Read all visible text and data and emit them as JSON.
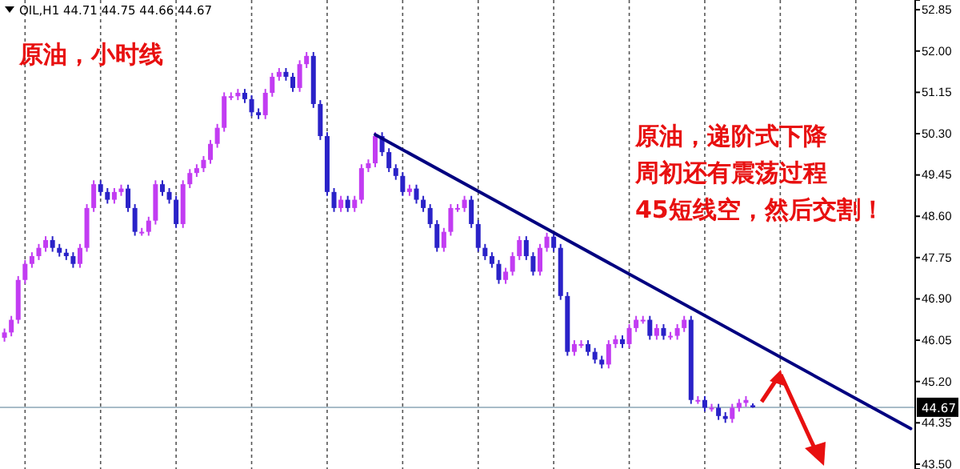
{
  "chart_data": {
    "type": "candlestick",
    "categories": [
      null,
      null,
      null,
      null,
      null,
      null,
      null,
      null,
      null,
      null,
      null,
      null,
      null,
      null,
      null,
      null,
      null,
      null,
      null,
      null,
      null,
      null,
      null,
      null,
      null,
      null,
      null,
      null,
      null,
      null,
      null,
      null,
      null,
      null,
      null,
      null,
      null,
      null,
      null,
      null,
      null,
      null,
      null,
      null,
      null,
      null,
      null,
      null,
      null,
      null,
      null,
      null,
      null,
      null,
      null,
      null,
      null,
      null,
      null,
      null,
      null,
      null,
      null,
      null,
      null,
      null,
      null,
      null,
      null,
      null,
      null,
      null,
      null,
      null,
      null,
      null,
      null,
      null,
      null,
      null,
      null,
      null,
      null,
      null,
      null,
      null,
      null,
      null,
      null,
      null,
      null,
      null,
      null,
      null,
      null,
      null,
      null,
      null,
      null,
      null,
      null,
      null,
      null,
      null,
      null,
      null,
      null,
      null,
      null,
      null,
      null,
      null,
      null,
      null,
      null,
      null,
      null,
      null,
      null,
      null,
      null,
      null,
      null,
      null,
      null,
      null,
      null,
      null,
      null,
      null,
      null,
      null,
      null
    ],
    "ohlc": [
      [
        46.1,
        46.29,
        46.02,
        46.21
      ],
      [
        46.21,
        46.55,
        46.13,
        46.47
      ],
      [
        46.47,
        47.37,
        46.39,
        47.29
      ],
      [
        47.29,
        47.7,
        47.21,
        47.62
      ],
      [
        47.62,
        47.86,
        47.54,
        47.78
      ],
      [
        47.78,
        48.03,
        47.7,
        47.95
      ],
      [
        47.95,
        48.19,
        47.87,
        48.11
      ],
      [
        48.11,
        48.19,
        47.87,
        47.95
      ],
      [
        47.95,
        48.03,
        47.77,
        47.85
      ],
      [
        47.85,
        47.93,
        47.7,
        47.78
      ],
      [
        47.78,
        47.86,
        47.54,
        47.62
      ],
      [
        47.62,
        48.03,
        47.54,
        47.95
      ],
      [
        47.95,
        48.85,
        47.87,
        48.77
      ],
      [
        48.77,
        49.34,
        48.69,
        49.26
      ],
      [
        49.26,
        49.34,
        49.02,
        49.1
      ],
      [
        49.1,
        49.18,
        48.86,
        48.94
      ],
      [
        48.94,
        49.18,
        48.86,
        49.1
      ],
      [
        49.1,
        49.25,
        49.02,
        49.17
      ],
      [
        49.17,
        49.25,
        48.69,
        48.77
      ],
      [
        48.77,
        48.85,
        48.2,
        48.28
      ],
      [
        48.28,
        48.36,
        48.2,
        48.28
      ],
      [
        48.28,
        48.59,
        48.2,
        48.51
      ],
      [
        48.51,
        49.34,
        48.43,
        49.26
      ],
      [
        49.26,
        49.34,
        49.02,
        49.1
      ],
      [
        49.1,
        49.18,
        48.86,
        48.94
      ],
      [
        48.94,
        49.02,
        48.36,
        48.44
      ],
      [
        48.44,
        49.34,
        48.36,
        49.26
      ],
      [
        49.26,
        49.57,
        49.18,
        49.49
      ],
      [
        49.49,
        49.67,
        49.41,
        49.59
      ],
      [
        49.59,
        49.84,
        49.51,
        49.76
      ],
      [
        49.76,
        50.17,
        49.68,
        50.09
      ],
      [
        50.09,
        50.5,
        50.01,
        50.42
      ],
      [
        50.42,
        51.15,
        50.34,
        51.07
      ],
      [
        51.07,
        51.15,
        50.99,
        51.07
      ],
      [
        51.07,
        51.22,
        50.99,
        51.14
      ],
      [
        51.14,
        51.22,
        50.93,
        51.01
      ],
      [
        51.01,
        51.09,
        50.66,
        50.74
      ],
      [
        50.74,
        50.82,
        50.6,
        50.68
      ],
      [
        50.68,
        51.22,
        50.6,
        51.14
      ],
      [
        51.14,
        51.55,
        51.06,
        51.47
      ],
      [
        51.47,
        51.65,
        51.39,
        51.57
      ],
      [
        51.57,
        51.65,
        51.39,
        51.47
      ],
      [
        51.47,
        51.55,
        51.16,
        51.24
      ],
      [
        51.24,
        51.81,
        51.16,
        51.73
      ],
      [
        51.73,
        51.98,
        51.65,
        51.9
      ],
      [
        51.9,
        51.98,
        50.83,
        50.91
      ],
      [
        50.91,
        50.99,
        50.17,
        50.25
      ],
      [
        50.25,
        50.33,
        49.02,
        49.1
      ],
      [
        49.1,
        49.18,
        48.69,
        48.77
      ],
      [
        48.77,
        49.02,
        48.69,
        48.94
      ],
      [
        48.94,
        49.02,
        48.69,
        48.77
      ],
      [
        48.77,
        49.02,
        48.69,
        48.94
      ],
      [
        48.94,
        49.67,
        48.86,
        49.59
      ],
      [
        49.59,
        49.77,
        49.51,
        49.69
      ],
      [
        49.69,
        50.33,
        49.61,
        50.25
      ],
      [
        50.25,
        50.33,
        49.84,
        49.92
      ],
      [
        49.92,
        50.0,
        49.51,
        49.59
      ],
      [
        49.59,
        49.67,
        49.35,
        49.43
      ],
      [
        49.43,
        49.51,
        49.02,
        49.1
      ],
      [
        49.1,
        49.25,
        49.02,
        49.17
      ],
      [
        49.17,
        49.25,
        48.86,
        48.94
      ],
      [
        48.94,
        49.02,
        48.69,
        48.77
      ],
      [
        48.77,
        48.85,
        48.36,
        48.44
      ],
      [
        48.44,
        48.52,
        47.87,
        47.95
      ],
      [
        47.95,
        48.36,
        47.87,
        48.28
      ],
      [
        48.28,
        48.85,
        48.2,
        48.77
      ],
      [
        48.77,
        48.85,
        48.69,
        48.77
      ],
      [
        48.77,
        49.02,
        48.69,
        48.94
      ],
      [
        48.94,
        49.02,
        48.36,
        48.44
      ],
      [
        48.44,
        48.52,
        47.87,
        47.95
      ],
      [
        47.95,
        48.03,
        47.7,
        47.78
      ],
      [
        47.78,
        47.86,
        47.54,
        47.62
      ],
      [
        47.62,
        47.7,
        47.21,
        47.29
      ],
      [
        47.29,
        47.54,
        47.21,
        47.46
      ],
      [
        47.46,
        47.86,
        47.38,
        47.78
      ],
      [
        47.78,
        48.19,
        47.7,
        48.11
      ],
      [
        48.11,
        48.19,
        47.7,
        47.78
      ],
      [
        47.78,
        47.86,
        47.38,
        47.46
      ],
      [
        47.46,
        48.03,
        47.38,
        47.95
      ],
      [
        47.95,
        48.26,
        47.87,
        48.18
      ],
      [
        48.18,
        48.26,
        47.87,
        47.95
      ],
      [
        47.95,
        48.03,
        46.88,
        46.96
      ],
      [
        46.96,
        47.04,
        45.73,
        45.81
      ],
      [
        45.81,
        46.05,
        45.73,
        45.97
      ],
      [
        45.97,
        46.05,
        45.89,
        45.97
      ],
      [
        45.97,
        46.05,
        45.73,
        45.81
      ],
      [
        45.81,
        45.89,
        45.57,
        45.65
      ],
      [
        45.65,
        45.73,
        45.47,
        45.55
      ],
      [
        45.55,
        46.05,
        45.47,
        45.97
      ],
      [
        45.97,
        46.15,
        45.89,
        46.07
      ],
      [
        46.07,
        46.15,
        45.89,
        45.97
      ],
      [
        45.97,
        46.38,
        45.89,
        46.3
      ],
      [
        46.3,
        46.55,
        46.22,
        46.47
      ],
      [
        46.47,
        46.55,
        46.39,
        46.47
      ],
      [
        46.47,
        46.55,
        46.06,
        46.14
      ],
      [
        46.14,
        46.38,
        46.06,
        46.3
      ],
      [
        46.3,
        46.38,
        46.06,
        46.14
      ],
      [
        46.14,
        46.22,
        46.06,
        46.14
      ],
      [
        46.14,
        46.38,
        46.06,
        46.3
      ],
      [
        46.3,
        46.55,
        46.22,
        46.47
      ],
      [
        46.47,
        46.55,
        44.74,
        44.82
      ],
      [
        44.82,
        44.9,
        44.74,
        44.82
      ],
      [
        44.82,
        44.9,
        44.58,
        44.66
      ],
      [
        44.66,
        44.74,
        44.58,
        44.66
      ],
      [
        44.66,
        44.74,
        44.41,
        44.49
      ],
      [
        44.49,
        44.57,
        44.35,
        44.43
      ],
      [
        44.43,
        44.74,
        44.35,
        44.66
      ],
      [
        44.66,
        44.84,
        44.58,
        44.76
      ],
      [
        44.76,
        44.9,
        44.68,
        44.82
      ],
      [
        44.71,
        44.75,
        44.66,
        44.67
      ],
      null,
      null,
      null,
      null,
      null,
      null,
      null,
      null,
      null,
      null,
      null,
      null,
      null,
      null,
      null,
      null,
      null,
      null,
      null,
      null,
      null,
      null,
      null
    ],
    "series": [
      {
        "type": "line",
        "color": "#000080",
        "values": [
          null,
          null,
          null,
          null,
          null,
          null,
          null,
          null,
          null,
          null,
          null,
          null,
          null,
          null,
          null,
          null,
          null,
          null,
          null,
          null,
          null,
          null,
          null,
          null,
          null,
          null,
          null,
          null,
          null,
          null,
          null,
          null,
          null,
          null,
          null,
          null,
          null,
          null,
          null,
          null,
          null,
          null,
          null,
          null,
          null,
          null,
          null,
          null,
          null,
          null,
          null,
          null,
          null,
          null,
          50.28,
          null,
          null,
          null,
          null,
          null,
          null,
          null,
          null,
          null,
          null,
          null,
          null,
          null,
          null,
          null,
          null,
          null,
          null,
          null,
          null,
          null,
          null,
          null,
          null,
          null,
          null,
          null,
          null,
          null,
          null,
          null,
          null,
          null,
          null,
          null,
          null,
          null,
          null,
          null,
          null,
          null,
          null,
          null,
          null,
          null,
          null,
          null,
          null,
          null,
          null,
          null,
          null,
          null,
          null,
          null,
          null,
          null,
          null,
          null,
          null,
          null,
          null,
          null,
          null,
          null,
          null,
          null,
          null,
          null,
          null,
          null,
          null,
          null,
          null,
          null,
          null,
          null,
          44.23
        ]
      }
    ],
    "ylim": [
      43.4,
      53.05
    ],
    "yticks": [
      {
        "value": 43.5,
        "label": "43.50"
      },
      {
        "value": 44.35,
        "label": "44.35"
      },
      {
        "value": 45.2,
        "label": "45.20"
      },
      {
        "value": 46.05,
        "label": "46.05"
      },
      {
        "value": 46.9,
        "label": "46.90"
      },
      {
        "value": 47.75,
        "label": "47.75"
      },
      {
        "value": 48.6,
        "label": "48.60"
      },
      {
        "value": 49.45,
        "label": "49.45"
      },
      {
        "value": 50.3,
        "label": "50.30"
      },
      {
        "value": 51.15,
        "label": "51.15"
      },
      {
        "value": 52.0,
        "label": "52.00"
      },
      {
        "value": 52.85,
        "label": "52.85"
      }
    ],
    "tick_labels": "y",
    "ref_lines": [
      {
        "axis": "y",
        "value": 44.67,
        "label": "44.67",
        "color": "#a8bcc8"
      }
    ],
    "annotations": [
      "OIL,H1  44.71 44.75 44.66 44.67",
      "原油，小时线",
      "原油，递阶式下降",
      "周初还有震荡过程",
      "45短线空，然后交割！"
    ]
  }
}
